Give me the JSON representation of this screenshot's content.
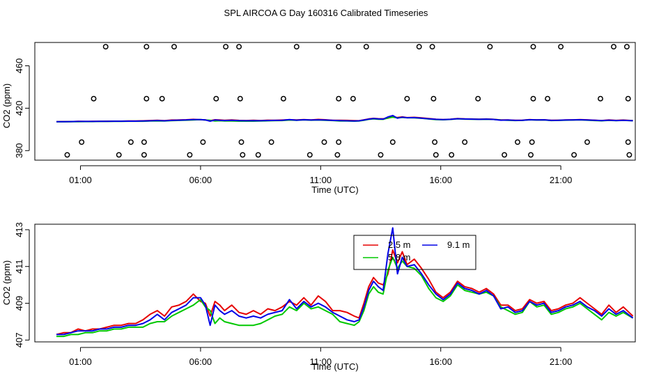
{
  "title": "SPL AIRCOA G  Day 160316  Calibrated Timeseries",
  "colors": {
    "axis": "#000000",
    "s25": "#e60000",
    "s58": "#00c800",
    "s91": "#0000e6",
    "flag": "#000000"
  },
  "chart_data": [
    {
      "type": "scatter+line",
      "panel": "top",
      "xlabel": "Time (UTC)",
      "ylabel": "CO2 (ppm)",
      "xlim": [
        -0.9,
        24.1
      ],
      "ylim": [
        371,
        482
      ],
      "xticks": [
        1,
        6,
        11,
        16,
        21
      ],
      "xtick_labels": [
        "01:00",
        "06:00",
        "11:00",
        "16:00",
        "21:00"
      ],
      "yticks": [
        380,
        420,
        460
      ],
      "ytick_labels": [
        "380",
        "420",
        "460"
      ],
      "flag_levels": [
        376,
        388,
        429,
        478
      ],
      "flag_points": [
        {
          "x": 0.45,
          "y": 376
        },
        {
          "x": 1.05,
          "y": 388
        },
        {
          "x": 1.55,
          "y": 429
        },
        {
          "x": 2.05,
          "y": 478
        },
        {
          "x": 2.6,
          "y": 376
        },
        {
          "x": 3.1,
          "y": 388
        },
        {
          "x": 3.65,
          "y": 376
        },
        {
          "x": 3.65,
          "y": 388
        },
        {
          "x": 3.75,
          "y": 429
        },
        {
          "x": 3.75,
          "y": 478
        },
        {
          "x": 4.4,
          "y": 429
        },
        {
          "x": 4.9,
          "y": 478
        },
        {
          "x": 5.55,
          "y": 376
        },
        {
          "x": 6.1,
          "y": 388
        },
        {
          "x": 6.65,
          "y": 429
        },
        {
          "x": 7.05,
          "y": 478
        },
        {
          "x": 7.6,
          "y": 478
        },
        {
          "x": 7.65,
          "y": 429
        },
        {
          "x": 7.7,
          "y": 388
        },
        {
          "x": 7.75,
          "y": 376
        },
        {
          "x": 8.4,
          "y": 376
        },
        {
          "x": 8.95,
          "y": 388
        },
        {
          "x": 9.45,
          "y": 429
        },
        {
          "x": 10.0,
          "y": 478
        },
        {
          "x": 10.55,
          "y": 376
        },
        {
          "x": 11.15,
          "y": 388
        },
        {
          "x": 11.7,
          "y": 376
        },
        {
          "x": 11.75,
          "y": 388
        },
        {
          "x": 11.75,
          "y": 429
        },
        {
          "x": 11.75,
          "y": 478
        },
        {
          "x": 12.35,
          "y": 429
        },
        {
          "x": 12.9,
          "y": 478
        },
        {
          "x": 13.5,
          "y": 376
        },
        {
          "x": 14.0,
          "y": 388
        },
        {
          "x": 14.6,
          "y": 429
        },
        {
          "x": 15.1,
          "y": 478
        },
        {
          "x": 15.65,
          "y": 478
        },
        {
          "x": 15.7,
          "y": 429
        },
        {
          "x": 15.75,
          "y": 388
        },
        {
          "x": 15.8,
          "y": 376
        },
        {
          "x": 16.45,
          "y": 376
        },
        {
          "x": 17.0,
          "y": 388
        },
        {
          "x": 17.55,
          "y": 429
        },
        {
          "x": 18.05,
          "y": 478
        },
        {
          "x": 18.65,
          "y": 376
        },
        {
          "x": 19.2,
          "y": 388
        },
        {
          "x": 19.75,
          "y": 376
        },
        {
          "x": 19.8,
          "y": 388
        },
        {
          "x": 19.85,
          "y": 429
        },
        {
          "x": 19.85,
          "y": 478
        },
        {
          "x": 20.45,
          "y": 429
        },
        {
          "x": 21.0,
          "y": 478
        },
        {
          "x": 21.55,
          "y": 376
        },
        {
          "x": 22.1,
          "y": 388
        },
        {
          "x": 22.65,
          "y": 429
        },
        {
          "x": 23.2,
          "y": 478
        },
        {
          "x": 23.75,
          "y": 478
        },
        {
          "x": 23.8,
          "y": 429
        },
        {
          "x": 23.8,
          "y": 388
        },
        {
          "x": 23.85,
          "y": 376
        }
      ],
      "series_note": "same 2.5 m, 5.8 m and 9.1 m series as the bottom panel, drawn on the wide axis"
    },
    {
      "type": "line",
      "panel": "bottom",
      "xlabel": "Time (UTC)",
      "ylabel": "CO2 (ppm)",
      "xlim": [
        -0.9,
        24.1
      ],
      "ylim": [
        406.9,
        413.3
      ],
      "xticks": [
        1,
        6,
        11,
        16,
        21
      ],
      "xtick_labels": [
        "01:00",
        "06:00",
        "11:00",
        "16:00",
        "21:00"
      ],
      "yticks": [
        407,
        409,
        411,
        413
      ],
      "ytick_labels": [
        "407",
        "409",
        "411",
        "413"
      ],
      "legend": {
        "placement": "top-center",
        "entries": [
          {
            "label": "2.5 m",
            "series": 0
          },
          {
            "label": "9.1 m",
            "series": 2
          },
          {
            "label": "5.8 m",
            "series": 1
          }
        ]
      },
      "series": [
        {
          "name": "2.5 m",
          "x": [
            0.0,
            0.3,
            0.6,
            0.9,
            1.2,
            1.5,
            1.8,
            2.1,
            2.4,
            2.7,
            3.0,
            3.3,
            3.6,
            3.9,
            4.2,
            4.5,
            4.8,
            5.1,
            5.4,
            5.7,
            6.0,
            6.2,
            6.4,
            6.6,
            6.8,
            7.0,
            7.3,
            7.6,
            7.9,
            8.2,
            8.5,
            8.8,
            9.1,
            9.4,
            9.7,
            10.0,
            10.3,
            10.6,
            10.9,
            11.2,
            11.5,
            11.8,
            12.1,
            12.4,
            12.6,
            12.8,
            13.0,
            13.2,
            13.4,
            13.6,
            13.8,
            14.0,
            14.2,
            14.4,
            14.6,
            14.9,
            15.2,
            15.5,
            15.8,
            16.1,
            16.4,
            16.7,
            17.0,
            17.3,
            17.6,
            17.9,
            18.2,
            18.5,
            18.8,
            19.1,
            19.4,
            19.7,
            20.0,
            20.3,
            20.6,
            20.9,
            21.2,
            21.5,
            21.8,
            22.1,
            22.4,
            22.7,
            23.0,
            23.3,
            23.6,
            24.0
          ],
          "values": [
            407.3,
            407.4,
            407.4,
            407.6,
            407.5,
            407.6,
            407.6,
            407.7,
            407.8,
            407.8,
            407.9,
            407.9,
            408.1,
            408.4,
            408.6,
            408.3,
            408.8,
            408.9,
            409.1,
            409.5,
            409.1,
            409.0,
            408.3,
            409.1,
            408.9,
            408.6,
            408.9,
            408.5,
            408.4,
            408.6,
            408.4,
            408.7,
            408.6,
            408.8,
            409.1,
            408.9,
            409.3,
            408.9,
            409.4,
            409.1,
            408.6,
            408.6,
            408.5,
            408.3,
            408.2,
            409.0,
            409.9,
            410.4,
            410.1,
            410.0,
            410.6,
            411.9,
            411.2,
            411.8,
            411.1,
            411.4,
            410.9,
            410.3,
            409.6,
            409.3,
            409.6,
            410.2,
            409.9,
            409.8,
            409.6,
            409.8,
            409.5,
            408.9,
            408.9,
            408.6,
            408.7,
            409.2,
            409.0,
            409.1,
            408.6,
            408.7,
            408.9,
            409.0,
            409.3,
            409.0,
            408.7,
            408.4,
            408.9,
            408.5,
            408.8,
            408.3
          ]
        },
        {
          "name": "5.8 m",
          "x": [
            0.0,
            0.3,
            0.6,
            0.9,
            1.2,
            1.5,
            1.8,
            2.1,
            2.4,
            2.7,
            3.0,
            3.3,
            3.6,
            3.9,
            4.2,
            4.5,
            4.8,
            5.1,
            5.4,
            5.7,
            6.0,
            6.2,
            6.4,
            6.6,
            6.8,
            7.0,
            7.3,
            7.6,
            7.9,
            8.2,
            8.5,
            8.8,
            9.1,
            9.4,
            9.7,
            10.0,
            10.3,
            10.6,
            10.9,
            11.2,
            11.5,
            11.8,
            12.1,
            12.4,
            12.6,
            12.8,
            13.0,
            13.2,
            13.4,
            13.6,
            13.8,
            14.0,
            14.2,
            14.4,
            14.6,
            14.9,
            15.2,
            15.5,
            15.8,
            16.1,
            16.4,
            16.7,
            17.0,
            17.3,
            17.6,
            17.9,
            18.2,
            18.5,
            18.8,
            19.1,
            19.4,
            19.7,
            20.0,
            20.3,
            20.6,
            20.9,
            21.2,
            21.5,
            21.8,
            22.1,
            22.4,
            22.7,
            23.0,
            23.3,
            23.6,
            24.0
          ],
          "values": [
            407.2,
            407.2,
            407.3,
            407.3,
            407.4,
            407.4,
            407.5,
            407.5,
            407.6,
            407.6,
            407.7,
            407.7,
            407.7,
            407.9,
            408.0,
            408.0,
            408.3,
            408.5,
            408.7,
            408.9,
            409.2,
            408.8,
            408.6,
            407.9,
            408.2,
            408.0,
            407.9,
            407.8,
            407.8,
            407.8,
            407.9,
            408.1,
            408.3,
            408.4,
            408.8,
            408.6,
            409.0,
            408.7,
            408.8,
            408.6,
            408.4,
            408.0,
            407.9,
            407.8,
            408.0,
            408.6,
            409.5,
            409.9,
            409.6,
            409.5,
            410.8,
            411.5,
            410.9,
            411.3,
            411.0,
            410.9,
            410.5,
            409.8,
            409.3,
            409.1,
            409.4,
            410.0,
            409.7,
            409.6,
            409.5,
            409.6,
            409.4,
            408.8,
            408.6,
            408.4,
            408.5,
            409.1,
            408.8,
            408.9,
            408.4,
            408.5,
            408.7,
            408.8,
            409.0,
            408.7,
            408.4,
            408.1,
            408.5,
            408.3,
            408.5,
            408.2
          ]
        },
        {
          "name": "9.1 m",
          "x": [
            0.0,
            0.3,
            0.6,
            0.9,
            1.2,
            1.5,
            1.8,
            2.1,
            2.4,
            2.7,
            3.0,
            3.3,
            3.6,
            3.9,
            4.2,
            4.5,
            4.8,
            5.1,
            5.4,
            5.7,
            6.0,
            6.2,
            6.4,
            6.6,
            6.8,
            7.0,
            7.3,
            7.6,
            7.9,
            8.2,
            8.5,
            8.8,
            9.1,
            9.4,
            9.7,
            10.0,
            10.3,
            10.6,
            10.9,
            11.2,
            11.5,
            11.8,
            12.1,
            12.4,
            12.6,
            12.8,
            13.0,
            13.2,
            13.4,
            13.6,
            13.8,
            14.0,
            14.2,
            14.4,
            14.6,
            14.9,
            15.2,
            15.5,
            15.8,
            16.1,
            16.4,
            16.7,
            17.0,
            17.3,
            17.6,
            17.9,
            18.2,
            18.5,
            18.8,
            19.1,
            19.4,
            19.7,
            20.0,
            20.3,
            20.6,
            20.9,
            21.2,
            21.5,
            21.8,
            22.1,
            22.4,
            22.7,
            23.0,
            23.3,
            23.6,
            24.0
          ],
          "values": [
            407.3,
            407.3,
            407.4,
            407.5,
            407.5,
            407.5,
            407.6,
            407.6,
            407.7,
            407.7,
            407.8,
            407.8,
            407.9,
            408.1,
            408.4,
            408.1,
            408.5,
            408.7,
            408.9,
            409.3,
            409.3,
            408.9,
            407.8,
            408.9,
            408.6,
            408.4,
            408.6,
            408.3,
            408.2,
            408.3,
            408.2,
            408.4,
            408.5,
            408.6,
            409.2,
            408.7,
            409.1,
            408.8,
            409.0,
            408.8,
            408.5,
            408.3,
            408.1,
            408.0,
            408.1,
            408.8,
            409.7,
            410.2,
            409.9,
            409.7,
            411.7,
            413.1,
            410.6,
            411.5,
            411.0,
            411.1,
            410.6,
            410.0,
            409.5,
            409.2,
            409.5,
            410.1,
            409.8,
            409.7,
            409.5,
            409.7,
            409.4,
            408.7,
            408.8,
            408.5,
            408.6,
            409.1,
            408.9,
            409.0,
            408.5,
            408.6,
            408.8,
            408.9,
            409.1,
            408.8,
            408.6,
            408.3,
            408.7,
            408.4,
            408.6,
            408.2
          ]
        }
      ]
    }
  ]
}
